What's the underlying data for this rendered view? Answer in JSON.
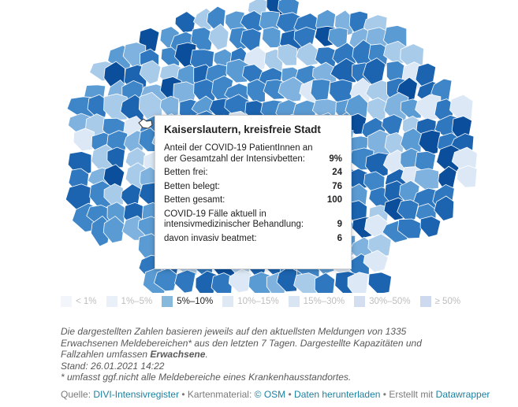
{
  "tooltip": {
    "title": "Kaiserslautern, kreisfreie Stadt",
    "rows": [
      {
        "label": "Anteil der COVID-19 PatientInnen an der Gesamtzahl der Intensivbetten:",
        "value": "9%"
      },
      {
        "label": "Betten frei:",
        "value": "24"
      },
      {
        "label": "Betten belegt:",
        "value": "76"
      },
      {
        "label": "Betten gesamt:",
        "value": "100"
      },
      {
        "label": "COVID-19 Fälle aktuell in intensivmedizinischer Behandlung:",
        "value": "9"
      },
      {
        "label": "davon invasiv beatmet:",
        "value": "6"
      }
    ]
  },
  "legend": [
    {
      "label": "< 1%",
      "color": "#f2f6fa",
      "active": false
    },
    {
      "label": "1%–5%",
      "color": "#e9f0f7",
      "active": false
    },
    {
      "label": "5%–10%",
      "color": "#86b9db",
      "active": true
    },
    {
      "label": "10%–15%",
      "color": "#dfe9f4",
      "active": false
    },
    {
      "label": "15%–30%",
      "color": "#d9e5f2",
      "active": false
    },
    {
      "label": "30%–50%",
      "color": "#d3dff0",
      "active": false
    },
    {
      "label": "≥ 50%",
      "color": "#ccd9ee",
      "active": false
    }
  ],
  "notes": {
    "line1": "Die dargestellten Zahlen basieren jeweils auf den aktuellsten Meldungen von 1335 Erwachsenen Meldebereichen* aus den letzten 7 Tagen. Dargestellte Kapazitäten und Fallzahlen umfassen ",
    "line1_bold": "Erwachsene",
    "line1_end": ".",
    "stand": "Stand: 26.01.2021 14:22",
    "footnote": "* umfasst ggf.nicht alle Meldebereiche eines Krankenhausstandortes."
  },
  "source": {
    "prefix": "Quelle: ",
    "divi": "DIVI-Intensivregister",
    "sep1": " • Kartenmaterial: ",
    "osm": "© OSM",
    "sep2": " • ",
    "download": "Daten herunterladen",
    "sep3": " • Erstellt mit ",
    "datawrapper": "Datawrapper"
  },
  "colors": {
    "map_palette": [
      "#0b4f9c",
      "#1c64b0",
      "#2f78c0",
      "#3e86c8",
      "#5b9bd3",
      "#7fb2df",
      "#a9cbea",
      "#dce8f5"
    ],
    "link": "#1d81a2"
  }
}
